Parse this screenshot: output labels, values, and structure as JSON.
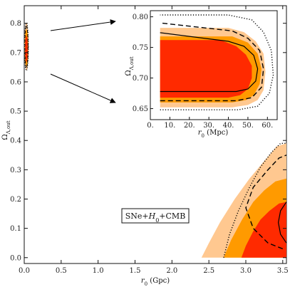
{
  "chart_data": [
    {
      "type": "contour",
      "xlabel": "r_0 (Gpc)",
      "ylabel": "Ω_Λ,out",
      "xlim": [
        0,
        3.55
      ],
      "ylim": [
        -0.02,
        0.86
      ],
      "xticks": [
        "0.0",
        "0.5",
        "1.0",
        "1.5",
        "2.0",
        "2.5",
        "3.0",
        "3.5"
      ],
      "yticks": [
        "0.0",
        "0.1",
        "0.2",
        "0.3",
        "0.4",
        "0.5",
        "0.6",
        "0.7",
        "0.8"
      ],
      "annotation": "SNe+H0+CMB",
      "colors": {
        "inner": "#ff2a00",
        "middle": "#ff9a00",
        "outer": "#ffc890"
      },
      "regions": [
        {
          "name": "outer",
          "polygon": [
            [
              2.4,
              0.0
            ],
            [
              2.5,
              0.05
            ],
            [
              2.65,
              0.12
            ],
            [
              2.85,
              0.2
            ],
            [
              3.05,
              0.27
            ],
            [
              3.25,
              0.33
            ],
            [
              3.42,
              0.38
            ],
            [
              3.55,
              0.39
            ],
            [
              3.55,
              0.0
            ]
          ]
        },
        {
          "name": "middle",
          "polygon": [
            [
              2.7,
              0.0
            ],
            [
              2.8,
              0.06
            ],
            [
              2.95,
              0.13
            ],
            [
              3.1,
              0.19
            ],
            [
              3.25,
              0.23
            ],
            [
              3.4,
              0.26
            ],
            [
              3.55,
              0.27
            ],
            [
              3.55,
              0.0
            ]
          ]
        },
        {
          "name": "inner",
          "polygon": [
            [
              2.94,
              0.0
            ],
            [
              3.0,
              0.04
            ],
            [
              3.1,
              0.09
            ],
            [
              3.2,
              0.13
            ],
            [
              3.32,
              0.16
            ],
            [
              3.45,
              0.185
            ],
            [
              3.55,
              0.19
            ],
            [
              3.55,
              0.0
            ]
          ]
        }
      ],
      "lines": [
        {
          "style": "dotted",
          "points": [
            [
              2.7,
              0.0
            ],
            [
              2.78,
              0.08
            ],
            [
              2.9,
              0.16
            ],
            [
              3.05,
              0.24
            ],
            [
              3.2,
              0.31
            ],
            [
              3.35,
              0.36
            ],
            [
              3.47,
              0.39
            ],
            [
              3.55,
              0.39
            ]
          ]
        },
        {
          "style": "dashed",
          "points": [
            [
              3.5,
              0.03
            ],
            [
              3.3,
              0.05
            ],
            [
              3.1,
              0.1
            ],
            [
              3.0,
              0.17
            ],
            [
              3.1,
              0.24
            ],
            [
              3.3,
              0.3
            ],
            [
              3.45,
              0.34
            ],
            [
              3.55,
              0.35
            ]
          ]
        },
        {
          "style": "solid",
          "points": [
            [
              3.55,
              0.05
            ],
            [
              3.47,
              0.08
            ],
            [
              3.44,
              0.12
            ],
            [
              3.47,
              0.16
            ],
            [
              3.55,
              0.19
            ]
          ]
        }
      ],
      "near_zero_region": {
        "x_range": [
          0.0,
          0.06
        ],
        "y_range": [
          0.64,
          0.8
        ],
        "colors": [
          "#ffc890",
          "#ff9a00",
          "#ff2a00"
        ]
      }
    },
    {
      "type": "contour",
      "xlabel": "r_0 (Mpc)",
      "ylabel": "Ω_Λ,out",
      "xlim": [
        0,
        65
      ],
      "ylim": [
        0.632,
        0.81
      ],
      "xticks": [
        "0.",
        "10.",
        "20.",
        "30.",
        "40.",
        "50.",
        "60."
      ],
      "yticks": [
        "0.65",
        "0.70",
        "0.75",
        "0.80"
      ],
      "regions": [
        {
          "name": "outer",
          "polygon": [
            [
              5,
              0.652
            ],
            [
              42,
              0.652
            ],
            [
              50,
              0.656
            ],
            [
              55,
              0.664
            ],
            [
              58,
              0.68
            ],
            [
              59,
              0.71
            ],
            [
              58,
              0.74
            ],
            [
              54,
              0.76
            ],
            [
              48,
              0.775
            ],
            [
              40,
              0.782
            ],
            [
              5,
              0.782
            ]
          ]
        },
        {
          "name": "middle",
          "polygon": [
            [
              5,
              0.66
            ],
            [
              42,
              0.66
            ],
            [
              49,
              0.664
            ],
            [
              53,
              0.672
            ],
            [
              56,
              0.69
            ],
            [
              57,
              0.715
            ],
            [
              55,
              0.74
            ],
            [
              50,
              0.758
            ],
            [
              42,
              0.768
            ],
            [
              5,
              0.768
            ]
          ]
        },
        {
          "name": "inner",
          "polygon": [
            [
              5,
              0.668
            ],
            [
              40,
              0.668
            ],
            [
              46,
              0.672
            ],
            [
              50,
              0.682
            ],
            [
              52,
              0.7
            ],
            [
              52,
              0.72
            ],
            [
              49,
              0.738
            ],
            [
              44,
              0.752
            ],
            [
              36,
              0.762
            ],
            [
              5,
              0.762
            ]
          ]
        }
      ],
      "lines": [
        {
          "style": "dotted",
          "points": [
            [
              5,
              0.648
            ],
            [
              45,
              0.648
            ],
            [
              55,
              0.654
            ],
            [
              61,
              0.675
            ],
            [
              63,
              0.705
            ],
            [
              62,
              0.745
            ],
            [
              58,
              0.775
            ],
            [
              52,
              0.795
            ],
            [
              40,
              0.803
            ],
            [
              5,
              0.803
            ]
          ]
        },
        {
          "style": "dashed",
          "points": [
            [
              5,
              0.663
            ],
            [
              44,
              0.663
            ],
            [
              52,
              0.668
            ],
            [
              57,
              0.685
            ],
            [
              58,
              0.715
            ],
            [
              56,
              0.745
            ],
            [
              50,
              0.765
            ],
            [
              42,
              0.777
            ],
            [
              5,
              0.79
            ]
          ]
        },
        {
          "style": "solid",
          "points": [
            [
              5,
              0.678
            ],
            [
              44,
              0.678
            ],
            [
              50,
              0.682
            ],
            [
              54,
              0.695
            ],
            [
              55,
              0.715
            ],
            [
              53,
              0.737
            ],
            [
              48,
              0.752
            ],
            [
              40,
              0.76
            ],
            [
              5,
              0.774
            ]
          ]
        }
      ]
    }
  ]
}
